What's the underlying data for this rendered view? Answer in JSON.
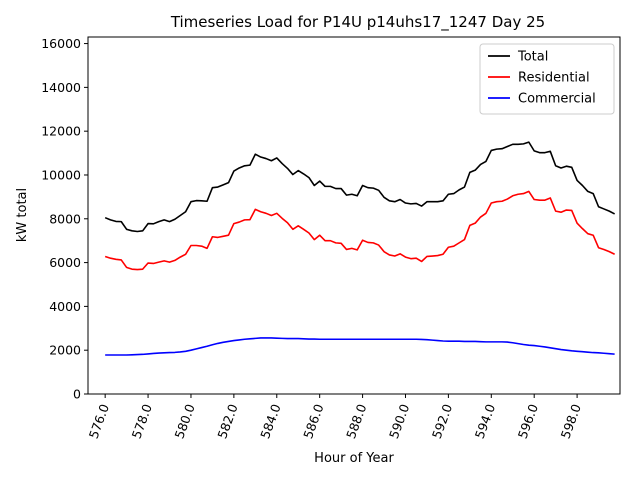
{
  "chart_data": {
    "type": "line",
    "title": "Timeseries Load for P14U p14uhs17_1247  Day 25",
    "xlabel": "Hour of Year",
    "ylabel": "kW total",
    "xlim": [
      575.2,
      600.0
    ],
    "ylim": [
      0,
      16300
    ],
    "x_ticks": [
      576,
      578,
      580,
      582,
      584,
      586,
      588,
      590,
      592,
      594,
      596,
      598
    ],
    "x_tick_labels": [
      "576.0",
      "578.0",
      "580.0",
      "582.0",
      "584.0",
      "586.0",
      "588.0",
      "590.0",
      "592.0",
      "594.0",
      "596.0",
      "598.0"
    ],
    "y_ticks": [
      0,
      2000,
      4000,
      6000,
      8000,
      10000,
      12000,
      14000,
      16000
    ],
    "y_tick_labels": [
      "0",
      "2000",
      "4000",
      "6000",
      "8000",
      "10000",
      "12000",
      "14000",
      "16000"
    ],
    "legend_position": "top-right",
    "x": [
      576.0,
      576.25,
      576.5,
      576.75,
      577.0,
      577.25,
      577.5,
      577.75,
      578.0,
      578.25,
      578.5,
      578.75,
      579.0,
      579.25,
      579.5,
      579.75,
      580.0,
      580.25,
      580.5,
      580.75,
      581.0,
      581.25,
      581.5,
      581.75,
      582.0,
      582.25,
      582.5,
      582.75,
      583.0,
      583.25,
      583.5,
      583.75,
      584.0,
      584.25,
      584.5,
      584.75,
      585.0,
      585.25,
      585.5,
      585.75,
      586.0,
      586.25,
      586.5,
      586.75,
      587.0,
      587.25,
      587.5,
      587.75,
      588.0,
      588.25,
      588.5,
      588.75,
      589.0,
      589.25,
      589.5,
      589.75,
      590.0,
      590.25,
      590.5,
      590.75,
      591.0,
      591.25,
      591.5,
      591.75,
      592.0,
      592.25,
      592.5,
      592.75,
      593.0,
      593.25,
      593.5,
      593.75,
      594.0,
      594.25,
      594.5,
      594.75,
      595.0,
      595.25,
      595.5,
      595.75,
      596.0,
      596.25,
      596.5,
      596.75,
      597.0,
      597.25,
      597.5,
      597.75,
      598.0,
      598.25,
      598.5,
      598.75,
      599.0,
      599.25,
      599.5,
      599.75
    ],
    "series": [
      {
        "name": "Total",
        "color": "#000000",
        "values": [
          8050,
          7950,
          7880,
          7870,
          7520,
          7450,
          7420,
          7450,
          7780,
          7770,
          7870,
          7950,
          7870,
          7980,
          8150,
          8320,
          8780,
          8830,
          8820,
          8800,
          9420,
          9450,
          9550,
          9650,
          10180,
          10320,
          10420,
          10450,
          10950,
          10820,
          10750,
          10650,
          10780,
          10520,
          10300,
          10020,
          10200,
          10050,
          9880,
          9520,
          9720,
          9480,
          9480,
          9380,
          9380,
          9080,
          9120,
          9050,
          9520,
          9420,
          9400,
          9300,
          8980,
          8820,
          8780,
          8880,
          8720,
          8680,
          8700,
          8580,
          8780,
          8780,
          8780,
          8820,
          9120,
          9150,
          9320,
          9450,
          10120,
          10220,
          10480,
          10620,
          11120,
          11180,
          11200,
          11300,
          11400,
          11400,
          11420,
          11500,
          11100,
          11020,
          11020,
          11080,
          10420,
          10320,
          10400,
          10350,
          9750,
          9520,
          9250,
          9150,
          8550,
          8450,
          8350,
          8220
        ]
      },
      {
        "name": "Residential",
        "color": "#ff0000",
        "values": [
          6280,
          6200,
          6150,
          6120,
          5780,
          5700,
          5680,
          5700,
          5980,
          5960,
          6020,
          6080,
          6020,
          6100,
          6250,
          6380,
          6780,
          6780,
          6750,
          6650,
          7180,
          7150,
          7200,
          7250,
          7780,
          7850,
          7950,
          7960,
          8430,
          8320,
          8250,
          8150,
          8250,
          8020,
          7820,
          7520,
          7680,
          7520,
          7350,
          7050,
          7250,
          7000,
          7000,
          6900,
          6880,
          6600,
          6650,
          6580,
          7020,
          6920,
          6900,
          6800,
          6500,
          6350,
          6300,
          6400,
          6250,
          6180,
          6200,
          6050,
          6280,
          6300,
          6320,
          6380,
          6700,
          6750,
          6900,
          7050,
          7700,
          7800,
          8080,
          8250,
          8720,
          8780,
          8800,
          8900,
          9050,
          9120,
          9150,
          9250,
          8880,
          8850,
          8850,
          8950,
          8350,
          8300,
          8400,
          8380,
          7800,
          7550,
          7320,
          7250,
          6680,
          6600,
          6500,
          6380
        ]
      },
      {
        "name": "Commercial",
        "color": "#0000ff",
        "values": [
          1780,
          1780,
          1780,
          1780,
          1780,
          1790,
          1800,
          1810,
          1830,
          1850,
          1870,
          1880,
          1890,
          1900,
          1920,
          1950,
          2000,
          2060,
          2120,
          2180,
          2250,
          2310,
          2360,
          2400,
          2440,
          2470,
          2500,
          2520,
          2540,
          2560,
          2560,
          2560,
          2550,
          2540,
          2530,
          2530,
          2530,
          2520,
          2510,
          2510,
          2500,
          2500,
          2500,
          2500,
          2500,
          2500,
          2500,
          2500,
          2500,
          2500,
          2500,
          2500,
          2500,
          2500,
          2500,
          2500,
          2500,
          2500,
          2500,
          2490,
          2480,
          2460,
          2440,
          2420,
          2410,
          2410,
          2410,
          2400,
          2400,
          2400,
          2390,
          2380,
          2380,
          2380,
          2380,
          2370,
          2340,
          2300,
          2260,
          2230,
          2210,
          2180,
          2150,
          2110,
          2070,
          2030,
          2000,
          1970,
          1950,
          1930,
          1910,
          1890,
          1880,
          1860,
          1840,
          1820
        ]
      }
    ]
  }
}
